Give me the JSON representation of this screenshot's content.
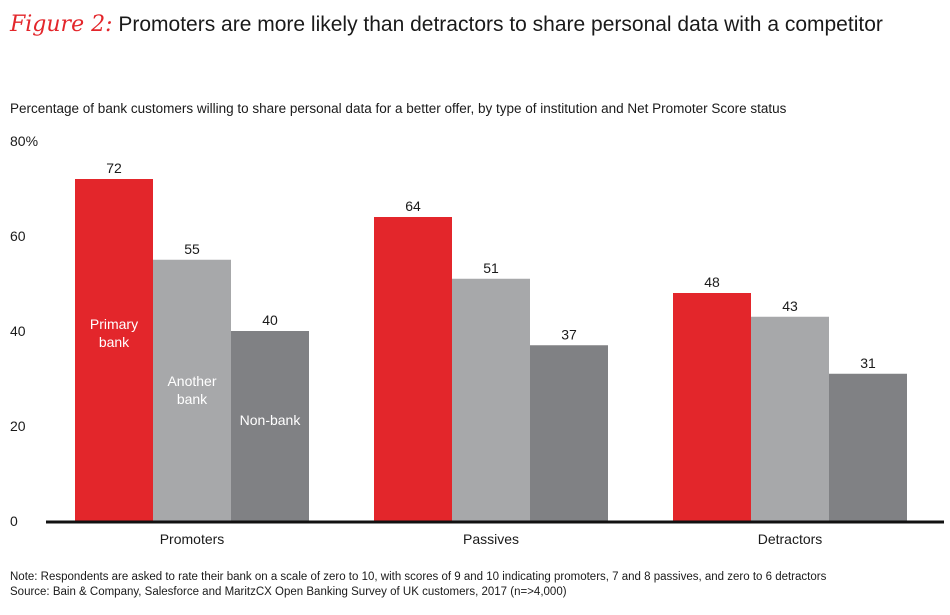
{
  "header": {
    "figure_label": "Figure 2:",
    "title": "Promoters are more likely than detractors to share personal data with a competitor",
    "subtitle": "Percentage of bank customers willing to share personal data for a better offer, by type of institution and Net Promoter Score status"
  },
  "footer": {
    "note": "Note: Respondents are asked to rate their bank on a scale of zero to 10, with scores of 9 and 10 indicating promoters, 7 and 8 passives, and zero to 6 detractors",
    "source": "Source: Bain & Company, Salesforce and MaritzCX Open Banking Survey of UK customers, 2017 (n=>4,000)"
  },
  "chart_data": {
    "type": "bar",
    "categories": [
      "Promoters",
      "Passives",
      "Detractors"
    ],
    "series": [
      {
        "name": "Primary bank",
        "label_lines": [
          "Primary",
          "bank"
        ],
        "color": "#e3262b",
        "label_color": "#ffffff",
        "values": [
          72,
          64,
          48
        ]
      },
      {
        "name": "Another bank",
        "label_lines": [
          "Another",
          "bank"
        ],
        "color": "#a7a8aa",
        "label_color": "#ffffff",
        "values": [
          55,
          51,
          43
        ]
      },
      {
        "name": "Non-bank",
        "label_lines": [
          "Non-bank"
        ],
        "color": "#808184",
        "label_color": "#ffffff",
        "values": [
          40,
          37,
          31
        ]
      }
    ],
    "yticks": [
      {
        "value": 0,
        "label": "0"
      },
      {
        "value": 20,
        "label": "20"
      },
      {
        "value": 40,
        "label": "40"
      },
      {
        "value": 60,
        "label": "60"
      },
      {
        "value": 80,
        "label": "80%"
      }
    ],
    "ylim": [
      0,
      80
    ],
    "grid": false,
    "legend": "inside bars of first group"
  }
}
